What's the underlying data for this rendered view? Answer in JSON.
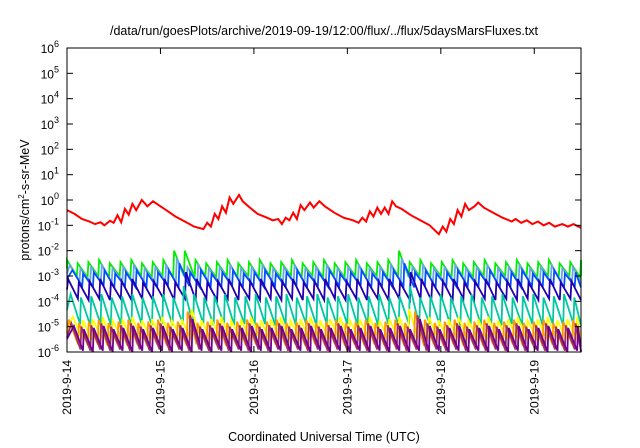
{
  "chart_data": {
    "type": "line",
    "title": "/data/run/goesPlots/archive/2019-09-19/12:00/flux/../flux/5daysMarsFluxes.txt",
    "xlabel": "Coordinated Universal Time (UTC)",
    "ylabel": {
      "base": "protons/cm",
      "sup": "2",
      "rest": "-s-sr-MeV"
    },
    "y_scale": "log",
    "y_exponent_range": [
      -6,
      6
    ],
    "y_ticks": [
      {
        "base": "10",
        "exp": "-6"
      },
      {
        "base": "10",
        "exp": "-5"
      },
      {
        "base": "10",
        "exp": "-4"
      },
      {
        "base": "10",
        "exp": "-3"
      },
      {
        "base": "10",
        "exp": "-2"
      },
      {
        "base": "10",
        "exp": "-1"
      },
      {
        "base": "10",
        "exp": "0"
      },
      {
        "base": "10",
        "exp": "1"
      },
      {
        "base": "10",
        "exp": "2"
      },
      {
        "base": "10",
        "exp": "3"
      },
      {
        "base": "10",
        "exp": "4"
      },
      {
        "base": "10",
        "exp": "5"
      },
      {
        "base": "10",
        "exp": "6"
      }
    ],
    "x_tick_labels": [
      "2019-9-14",
      "2019-9-15",
      "2019-9-16",
      "2019-9-17",
      "2019-9-18",
      "2019-9-19"
    ],
    "x_range_days": [
      0,
      5.5
    ],
    "grid": false,
    "legend": "none",
    "series": [
      {
        "color": "#ff0000",
        "points": [
          [
            0.0,
            -0.4
          ],
          [
            0.08,
            -0.55
          ],
          [
            0.16,
            -0.75
          ],
          [
            0.24,
            -0.85
          ],
          [
            0.3,
            -0.95
          ],
          [
            0.36,
            -0.88
          ],
          [
            0.4,
            -1.0
          ],
          [
            0.46,
            -0.82
          ],
          [
            0.5,
            -0.9
          ],
          [
            0.54,
            -0.6
          ],
          [
            0.58,
            -0.88
          ],
          [
            0.62,
            -0.35
          ],
          [
            0.66,
            -0.58
          ],
          [
            0.7,
            -0.15
          ],
          [
            0.74,
            -0.4
          ],
          [
            0.8,
            0.0
          ],
          [
            0.86,
            -0.25
          ],
          [
            0.92,
            -0.05
          ],
          [
            0.98,
            -0.2
          ],
          [
            1.06,
            -0.4
          ],
          [
            1.16,
            -0.65
          ],
          [
            1.26,
            -0.85
          ],
          [
            1.36,
            -1.05
          ],
          [
            1.46,
            -1.15
          ],
          [
            1.5,
            -0.9
          ],
          [
            1.54,
            -1.05
          ],
          [
            1.58,
            -0.55
          ],
          [
            1.62,
            -0.75
          ],
          [
            1.66,
            -0.25
          ],
          [
            1.7,
            -0.5
          ],
          [
            1.74,
            0.1
          ],
          [
            1.78,
            -0.15
          ],
          [
            1.84,
            0.2
          ],
          [
            1.88,
            -0.05
          ],
          [
            1.94,
            -0.25
          ],
          [
            2.04,
            -0.55
          ],
          [
            2.14,
            -0.7
          ],
          [
            2.2,
            -0.8
          ],
          [
            2.26,
            -0.75
          ],
          [
            2.3,
            -0.95
          ],
          [
            2.34,
            -0.7
          ],
          [
            2.38,
            -0.8
          ],
          [
            2.42,
            -0.5
          ],
          [
            2.46,
            -0.75
          ],
          [
            2.5,
            -0.2
          ],
          [
            2.54,
            -0.4
          ],
          [
            2.6,
            -0.1
          ],
          [
            2.64,
            -0.3
          ],
          [
            2.7,
            -0.05
          ],
          [
            2.76,
            -0.25
          ],
          [
            2.86,
            -0.5
          ],
          [
            2.96,
            -0.7
          ],
          [
            3.06,
            -0.8
          ],
          [
            3.12,
            -0.9
          ],
          [
            3.16,
            -0.7
          ],
          [
            3.2,
            -0.85
          ],
          [
            3.24,
            -0.45
          ],
          [
            3.28,
            -0.65
          ],
          [
            3.32,
            -0.3
          ],
          [
            3.36,
            -0.55
          ],
          [
            3.4,
            -0.3
          ],
          [
            3.44,
            -0.55
          ],
          [
            3.48,
            -0.05
          ],
          [
            3.52,
            -0.25
          ],
          [
            3.58,
            -0.35
          ],
          [
            3.68,
            -0.6
          ],
          [
            3.78,
            -0.8
          ],
          [
            3.88,
            -1.0
          ],
          [
            3.98,
            -1.35
          ],
          [
            4.02,
            -1.05
          ],
          [
            4.06,
            -1.25
          ],
          [
            4.1,
            -0.75
          ],
          [
            4.14,
            -0.95
          ],
          [
            4.18,
            -0.4
          ],
          [
            4.22,
            -0.65
          ],
          [
            4.26,
            -0.15
          ],
          [
            4.3,
            -0.4
          ],
          [
            4.36,
            -0.25
          ],
          [
            4.4,
            -0.1
          ],
          [
            4.46,
            -0.3
          ],
          [
            4.56,
            -0.5
          ],
          [
            4.66,
            -0.7
          ],
          [
            4.76,
            -0.85
          ],
          [
            4.8,
            -0.75
          ],
          [
            4.86,
            -0.9
          ],
          [
            4.92,
            -0.8
          ],
          [
            4.98,
            -0.95
          ],
          [
            5.04,
            -0.85
          ],
          [
            5.1,
            -1.0
          ],
          [
            5.16,
            -0.9
          ],
          [
            5.22,
            -1.05
          ],
          [
            5.3,
            -0.95
          ],
          [
            5.36,
            -1.05
          ],
          [
            5.42,
            -0.95
          ],
          [
            5.5,
            -1.1
          ]
        ]
      },
      {
        "color": "#00ee00",
        "shape": {
          "low": -3.05,
          "high": -2.45,
          "spike_x": [
            1.2,
            3.58
          ],
          "spike_high": -2.0,
          "count": 48,
          "phase": 0.0
        }
      },
      {
        "color": "#6aa5e8",
        "shape": {
          "low": -3.25,
          "high": -2.65,
          "spike_x": [
            1.22,
            3.6
          ],
          "spike_high": -2.3,
          "count": 48,
          "phase": 0.25
        }
      },
      {
        "color": "#0050ff",
        "shape": {
          "low": -3.45,
          "high": -2.85,
          "spike_x": [
            1.24,
            3.62
          ],
          "spike_high": -2.5,
          "count": 48,
          "phase": 0.5
        }
      },
      {
        "color": "#2000b0",
        "shape": {
          "low": -3.95,
          "high": -3.2,
          "spike_x": [
            1.26,
            3.64
          ],
          "spike_high": -2.85,
          "count": 48,
          "phase": 0.1
        }
      },
      {
        "color": "#00c8a0",
        "shape": {
          "low": -4.95,
          "high": -3.8,
          "spike_x": [
            1.28,
            3.66
          ],
          "spike_high": -3.4,
          "count": 50,
          "phase": 0.35
        }
      },
      {
        "color": "#ffff00",
        "shape": {
          "low": -5.5,
          "high": -4.7,
          "spike_x": [
            1.3,
            3.68
          ],
          "spike_high": -4.3,
          "count": 52,
          "phase": 0.6
        }
      },
      {
        "color": "#ff9900",
        "shape": {
          "low": -5.75,
          "high": -4.8,
          "spike_x": [
            1.32,
            3.7
          ],
          "spike_high": -4.4,
          "count": 52,
          "phase": 0.2
        }
      },
      {
        "color": "#a03060",
        "shape": {
          "low": -5.95,
          "high": -4.95,
          "spike_x": [
            1.34,
            3.72
          ],
          "spike_high": -4.55,
          "count": 52,
          "phase": 0.45
        }
      },
      {
        "color": "#700090",
        "shape": {
          "low": -6.0,
          "high": -5.05,
          "spike_x": [
            1.36,
            3.74
          ],
          "spike_high": -4.7,
          "count": 52,
          "phase": 0.7
        }
      }
    ]
  }
}
